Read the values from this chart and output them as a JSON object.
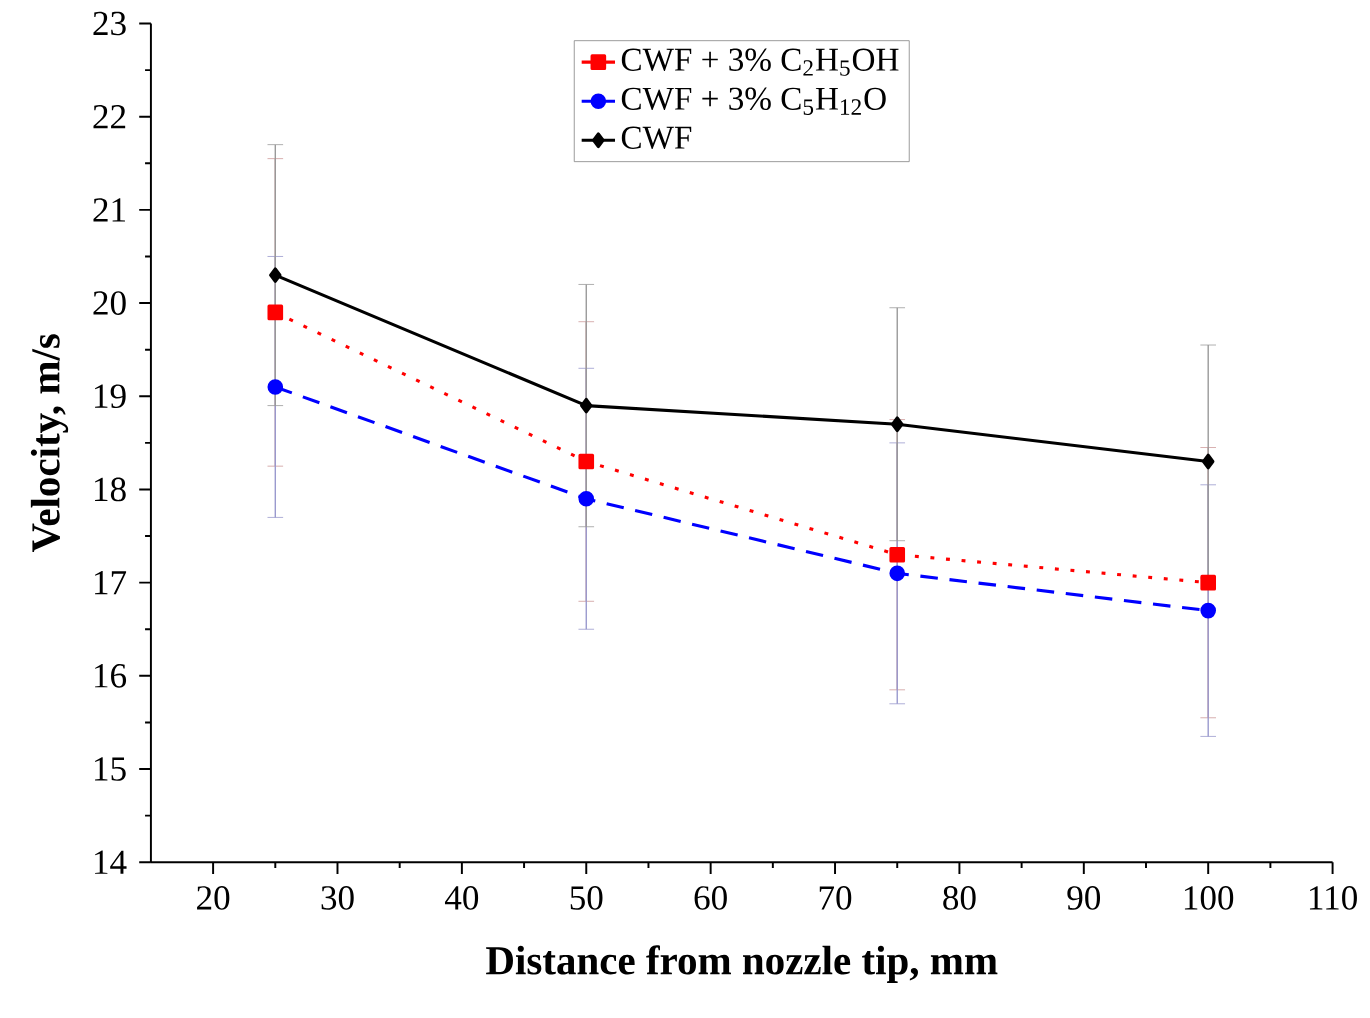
{
  "chart_data": {
    "type": "line",
    "xlabel": "Distance from nozzle tip, mm",
    "ylabel": "Velocity, m/s",
    "x": [
      25,
      50,
      75,
      100
    ],
    "xlim": [
      15,
      110
    ],
    "xticks": [
      20,
      30,
      40,
      50,
      60,
      70,
      80,
      90,
      100,
      110
    ],
    "ylim": [
      14,
      23
    ],
    "yticks": [
      14,
      15,
      16,
      17,
      18,
      19,
      20,
      21,
      22,
      23
    ],
    "grid": false,
    "legend": "top",
    "series": [
      {
        "name": "CWF + 3% C$_{2}$H$_{5}$OH",
        "color": "#ff0000",
        "marker": "square",
        "line_style": "dotted",
        "values": [
          19.9,
          18.3,
          17.3,
          17.0
        ],
        "errors": [
          1.65,
          1.5,
          1.45,
          1.45
        ]
      },
      {
        "name": "CWF + 3% C$_{5}$H$_{12}$O",
        "color": "#0000ff",
        "marker": "circle",
        "line_style": "dashed",
        "values": [
          19.1,
          17.9,
          17.1,
          16.7
        ],
        "errors": [
          1.4,
          1.4,
          1.4,
          1.35
        ]
      },
      {
        "name": "CWF",
        "color": "#000000",
        "marker": "diamond",
        "line_style": "solid",
        "values": [
          20.3,
          18.9,
          18.7,
          18.3
        ],
        "errors": [
          1.4,
          1.3,
          1.25,
          1.25
        ]
      }
    ]
  }
}
